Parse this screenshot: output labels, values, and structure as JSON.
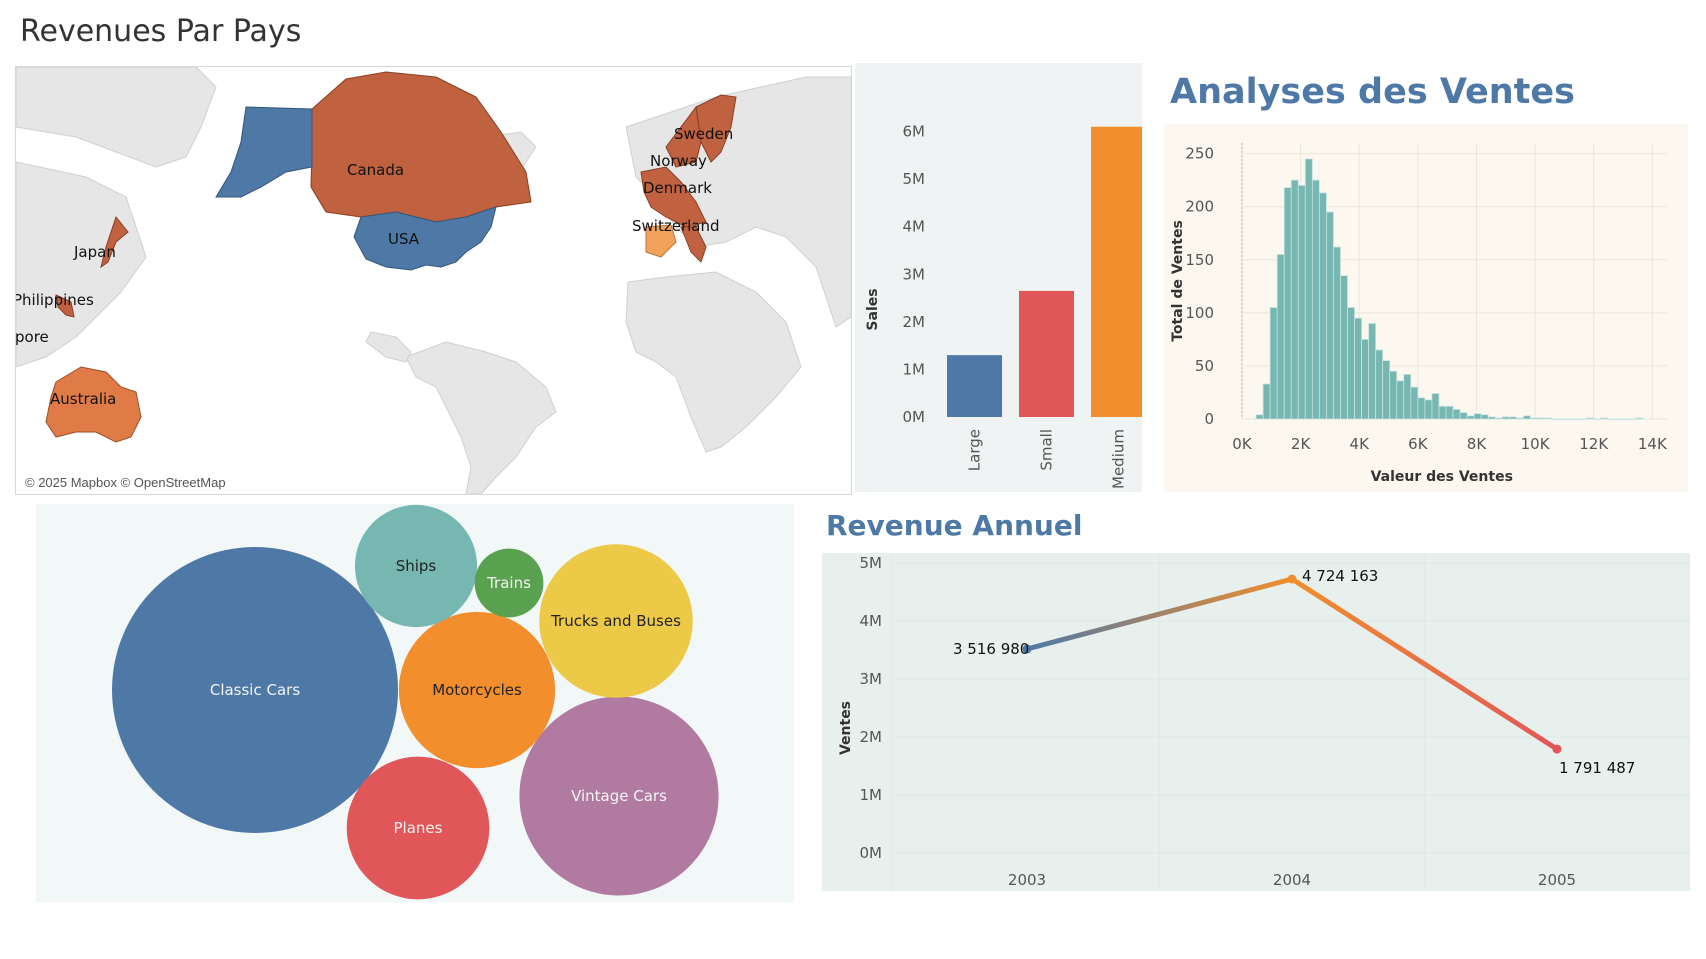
{
  "dashboard": {
    "title": "Revenues Par Pays"
  },
  "map": {
    "attribution": "© 2025 Mapbox © OpenStreetMap",
    "countries": [
      {
        "name": "Canada",
        "color": "#c0613f"
      },
      {
        "name": "USA",
        "color": "#4e79a7"
      },
      {
        "name": "Japan",
        "color": "#c0613f"
      },
      {
        "name": "Philippines",
        "color": "#c0613f"
      },
      {
        "name": "Singapore",
        "label": "pore",
        "color": "#c0613f"
      },
      {
        "name": "Australia",
        "color": "#e07b47"
      },
      {
        "name": "Sweden",
        "color": "#c0613f"
      },
      {
        "name": "Norway",
        "color": "#c0613f"
      },
      {
        "name": "Denmark",
        "color": "#c0613f"
      },
      {
        "name": "Switzerland",
        "color": "#f1a35b"
      }
    ]
  },
  "chart_data": [
    {
      "id": "deal-size",
      "type": "bar",
      "categories": [
        "Large",
        "Small",
        "Medium"
      ],
      "values": [
        1300000,
        2650000,
        6100000
      ],
      "colors": [
        "#4e79a7",
        "#e15759",
        "#f28e2b"
      ],
      "ylabel": "Sales",
      "yticks": [
        "0M",
        "1M",
        "2M",
        "3M",
        "4M",
        "5M",
        "6M"
      ],
      "ylim": [
        0,
        6200000
      ],
      "grid": false
    },
    {
      "id": "sales-histogram",
      "type": "bar",
      "title": "Analyses des Ventes",
      "xlabel": "Valeur des Ventes",
      "ylabel": "Total de Ventes",
      "xticks": [
        "0K",
        "2K",
        "4K",
        "6K",
        "8K",
        "10K",
        "12K",
        "14K"
      ],
      "yticks": [
        "0",
        "50",
        "100",
        "150",
        "200",
        "250"
      ],
      "xlim": [
        0,
        14500
      ],
      "ylim": [
        0,
        260
      ],
      "bin_width": 240,
      "bin_start": 480,
      "color": "#76b7b2",
      "values": [
        4,
        33,
        105,
        155,
        218,
        225,
        220,
        245,
        225,
        213,
        195,
        162,
        135,
        105,
        95,
        75,
        90,
        65,
        55,
        45,
        36,
        42,
        30,
        20,
        18,
        24,
        12,
        12,
        9,
        6,
        3,
        5,
        4,
        2,
        1,
        2,
        2,
        1,
        3,
        1,
        1,
        1,
        0,
        0,
        0,
        0,
        0,
        1,
        0,
        1,
        0,
        0,
        0,
        0,
        1
      ]
    },
    {
      "id": "product-lines",
      "type": "bubble",
      "series": [
        {
          "name": "Classic Cars",
          "value": 3920000,
          "color": "#4e79a7"
        },
        {
          "name": "Vintage Cars",
          "value": 1900000,
          "color": "#b07aa1"
        },
        {
          "name": "Motorcycles",
          "value": 1170000,
          "color": "#f28e2b"
        },
        {
          "name": "Trucks and Buses",
          "value": 1130000,
          "color": "#edc948"
        },
        {
          "name": "Planes",
          "value": 975000,
          "color": "#e15759"
        },
        {
          "name": "Ships",
          "value": 715000,
          "color": "#76b7b2"
        },
        {
          "name": "Trains",
          "value": 227000,
          "color": "#59a14f"
        }
      ]
    },
    {
      "id": "annual-revenue",
      "type": "line",
      "title": "Revenue Annuel",
      "ylabel": "Ventes",
      "x": [
        "2003",
        "2004",
        "2005"
      ],
      "values": [
        3516980,
        4724163,
        1791487
      ],
      "labels": [
        "3 516 980",
        "4 724 163",
        "1 791 487"
      ],
      "yticks": [
        "0M",
        "1M",
        "2M",
        "3M",
        "4M",
        "5M"
      ],
      "ylim": [
        0,
        5000000
      ],
      "colors": [
        "#4e79a7",
        "#f28e2b",
        "#e15759"
      ],
      "grid": true
    }
  ]
}
